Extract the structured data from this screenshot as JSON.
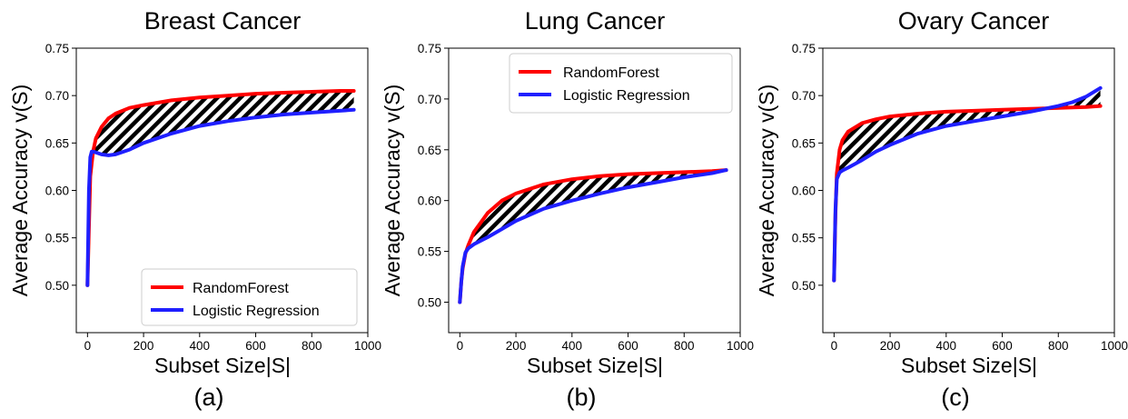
{
  "figure": {
    "panel_labels": [
      "(a)",
      "(b)",
      "(c)"
    ]
  },
  "chart_data": [
    {
      "type": "line",
      "title": "Breast Cancer",
      "xlabel": "Subset Size|S|",
      "ylabel": "Average Accuracy v(S)",
      "xlim": [
        -40,
        1000
      ],
      "ylim": [
        0.45,
        0.75
      ],
      "xticks": [
        0,
        200,
        400,
        600,
        800,
        1000
      ],
      "yticks": [
        0.5,
        0.55,
        0.6,
        0.65,
        0.7,
        0.75
      ],
      "grid": false,
      "legend_position": "bottom-right",
      "shaded_region": "hatched between series",
      "series": [
        {
          "name": "RandomForest",
          "color": "#ff0000",
          "x": [
            0,
            5,
            10,
            20,
            30,
            50,
            75,
            100,
            150,
            200,
            300,
            400,
            500,
            600,
            700,
            800,
            900,
            950
          ],
          "y": [
            0.5,
            0.56,
            0.615,
            0.641,
            0.655,
            0.667,
            0.676,
            0.681,
            0.687,
            0.69,
            0.695,
            0.698,
            0.7,
            0.702,
            0.703,
            0.704,
            0.705,
            0.705
          ]
        },
        {
          "name": "Logistic Regression",
          "color": "#1f1fff",
          "x": [
            0,
            5,
            10,
            15,
            20,
            30,
            50,
            75,
            100,
            150,
            200,
            300,
            400,
            500,
            600,
            700,
            800,
            900,
            950
          ],
          "y": [
            0.5,
            0.6,
            0.635,
            0.641,
            0.641,
            0.64,
            0.638,
            0.637,
            0.638,
            0.643,
            0.65,
            0.66,
            0.668,
            0.673,
            0.677,
            0.68,
            0.682,
            0.684,
            0.685
          ]
        }
      ]
    },
    {
      "type": "line",
      "title": "Lung Cancer",
      "xlabel": "Subset Size|S|",
      "ylabel": "Average Accuracy v(S)",
      "xlim": [
        -40,
        1000
      ],
      "ylim": [
        0.47,
        0.75
      ],
      "xticks": [
        0,
        200,
        400,
        600,
        800,
        1000
      ],
      "yticks": [
        0.5,
        0.55,
        0.6,
        0.65,
        0.7,
        0.75
      ],
      "grid": false,
      "legend_position": "top-right",
      "shaded_region": "hatched between series",
      "series": [
        {
          "name": "RandomForest",
          "color": "#ff0000",
          "x": [
            0,
            5,
            10,
            20,
            30,
            50,
            100,
            150,
            200,
            300,
            400,
            500,
            600,
            700,
            800,
            900,
            950
          ],
          "y": [
            0.5,
            0.52,
            0.533,
            0.548,
            0.556,
            0.569,
            0.588,
            0.6,
            0.607,
            0.616,
            0.621,
            0.624,
            0.626,
            0.627,
            0.628,
            0.629,
            0.63
          ]
        },
        {
          "name": "Logistic Regression",
          "color": "#1f1fff",
          "x": [
            0,
            5,
            10,
            20,
            30,
            50,
            100,
            150,
            200,
            300,
            400,
            500,
            600,
            700,
            800,
            900,
            950
          ],
          "y": [
            0.5,
            0.52,
            0.535,
            0.549,
            0.553,
            0.557,
            0.564,
            0.572,
            0.58,
            0.592,
            0.6,
            0.607,
            0.613,
            0.618,
            0.623,
            0.627,
            0.63
          ]
        }
      ]
    },
    {
      "type": "line",
      "title": "Ovary Cancer",
      "xlabel": "Subset Size|S|",
      "ylabel": "Average Accuracy v(S)",
      "xlim": [
        -40,
        1000
      ],
      "ylim": [
        0.45,
        0.75
      ],
      "xticks": [
        0,
        200,
        400,
        600,
        800,
        1000
      ],
      "yticks": [
        0.5,
        0.55,
        0.6,
        0.65,
        0.7,
        0.75
      ],
      "grid": false,
      "legend_position": "none",
      "shaded_region": "hatched between series",
      "series": [
        {
          "name": "RandomForest",
          "color": "#ff0000",
          "x": [
            0,
            5,
            10,
            20,
            30,
            50,
            100,
            150,
            200,
            300,
            400,
            500,
            600,
            700,
            800,
            900,
            950
          ],
          "y": [
            0.505,
            0.575,
            0.618,
            0.643,
            0.653,
            0.662,
            0.671,
            0.675,
            0.678,
            0.681,
            0.683,
            0.684,
            0.685,
            0.686,
            0.687,
            0.688,
            0.689
          ]
        },
        {
          "name": "Logistic Regression",
          "color": "#1f1fff",
          "x": [
            0,
            5,
            10,
            20,
            30,
            50,
            100,
            150,
            200,
            300,
            400,
            500,
            600,
            700,
            800,
            850,
            900,
            950
          ],
          "y": [
            0.505,
            0.58,
            0.612,
            0.619,
            0.621,
            0.624,
            0.632,
            0.641,
            0.648,
            0.66,
            0.668,
            0.673,
            0.678,
            0.683,
            0.689,
            0.693,
            0.699,
            0.708
          ]
        }
      ]
    }
  ]
}
